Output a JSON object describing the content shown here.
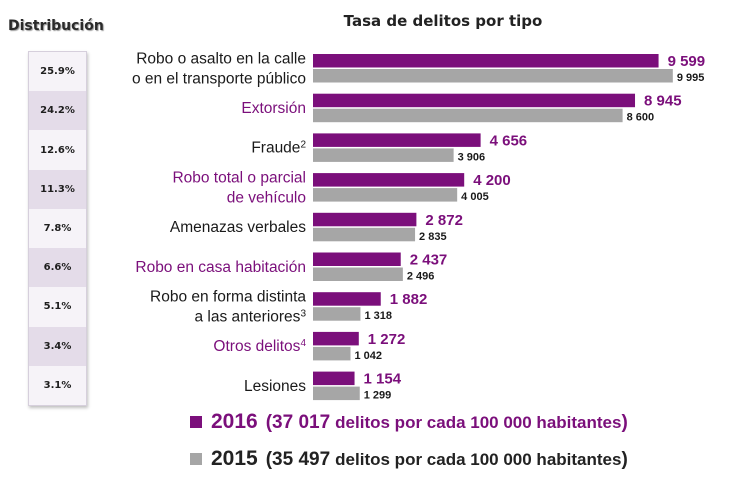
{
  "distribution": {
    "title": "Distribución",
    "values": [
      "25.9%",
      "24.2%",
      "12.6%",
      "11.3%",
      "7.8%",
      "6.6%",
      "5.1%",
      "3.4%",
      "3.1%"
    ]
  },
  "colors": {
    "s2016": "#7b0f7b",
    "s2015": "#a6a6a6",
    "label_highlight": "#7b0f7b",
    "label_normal": "#1a1a1a"
  },
  "chart_data": {
    "type": "bar",
    "orientation": "horizontal",
    "title": "Tasa de delitos por tipo",
    "categories": [
      {
        "lines": [
          "Robo o asalto en la calle",
          "o en el transporte público"
        ],
        "sup": "",
        "highlight": false
      },
      {
        "lines": [
          "Extorsión"
        ],
        "sup": "",
        "highlight": true
      },
      {
        "lines": [
          "Fraude"
        ],
        "sup": "2",
        "highlight": false
      },
      {
        "lines": [
          "Robo total o parcial",
          "de vehículo"
        ],
        "sup": "",
        "highlight": true
      },
      {
        "lines": [
          "Amenazas verbales"
        ],
        "sup": "",
        "highlight": false
      },
      {
        "lines": [
          "Robo en casa habitación"
        ],
        "sup": "",
        "highlight": true
      },
      {
        "lines": [
          "Robo en forma distinta",
          "a las anteriores"
        ],
        "sup": "3",
        "highlight": false
      },
      {
        "lines": [
          "Otros delitos"
        ],
        "sup": "4",
        "highlight": true
      },
      {
        "lines": [
          "Lesiones"
        ],
        "sup": "",
        "highlight": false
      }
    ],
    "series": [
      {
        "name": "2016",
        "values": [
          9599,
          8945,
          4656,
          4200,
          2872,
          2437,
          1882,
          1272,
          1154
        ],
        "labels": [
          "9 599",
          "8 945",
          "4 656",
          "4 200",
          "2 872",
          "2 437",
          "1 882",
          "1 272",
          "1 154"
        ]
      },
      {
        "name": "2015",
        "values": [
          9995,
          8600,
          3906,
          4005,
          2835,
          2496,
          1318,
          1042,
          1299
        ],
        "labels": [
          "9 995",
          "8 600",
          "3 906",
          "4 005",
          "2 835",
          "2 496",
          "1 318",
          "1 042",
          "1 299"
        ]
      }
    ],
    "xlim": [
      0,
      10000
    ],
    "legend": [
      {
        "year": "2016",
        "open": "(",
        "total": "37 017",
        "text": "delitos por cada 100 000 habitantes",
        "close": ")"
      },
      {
        "year": "2015",
        "open": "(",
        "total": "35 497",
        "text": "delitos por cada 100 000 habitantes",
        "close": ")"
      }
    ],
    "legend_position": "bottom",
    "grid": false
  }
}
